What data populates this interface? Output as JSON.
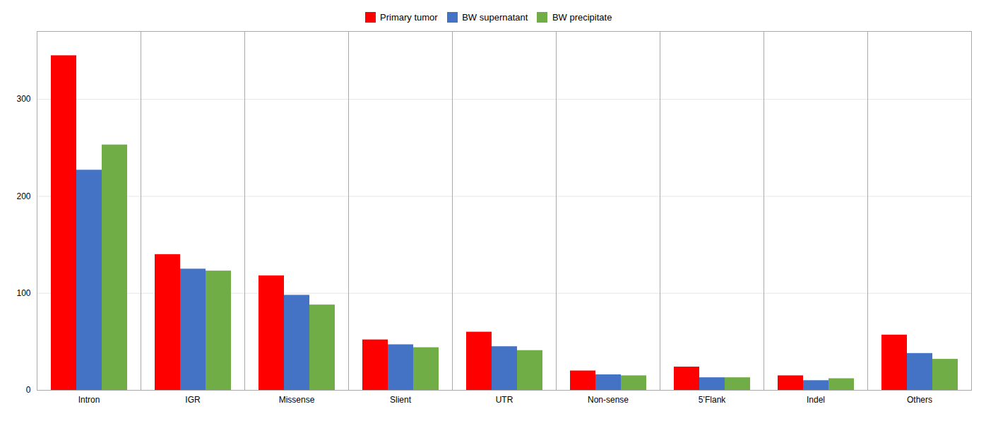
{
  "chart_data": {
    "type": "bar",
    "categories": [
      "Intron",
      "IGR",
      "Missense",
      "Slient",
      "UTR",
      "Non-sense",
      "5’Flank",
      "Indel",
      "Others"
    ],
    "series": [
      {
        "name": "Primary tumor",
        "color": "#FF0000",
        "values": [
          345,
          140,
          118,
          52,
          60,
          20,
          24,
          15,
          57
        ]
      },
      {
        "name": "BW supernatant",
        "color": "#4472C4",
        "values": [
          227,
          125,
          98,
          47,
          45,
          16,
          13,
          10,
          38
        ]
      },
      {
        "name": "BW precipitate",
        "color": "#70AD47",
        "values": [
          253,
          123,
          88,
          44,
          41,
          15,
          13,
          12,
          32
        ]
      }
    ],
    "ylim": [
      0,
      370
    ],
    "yticks": [
      0,
      100,
      200,
      300
    ],
    "grid": true,
    "legend": "top"
  }
}
